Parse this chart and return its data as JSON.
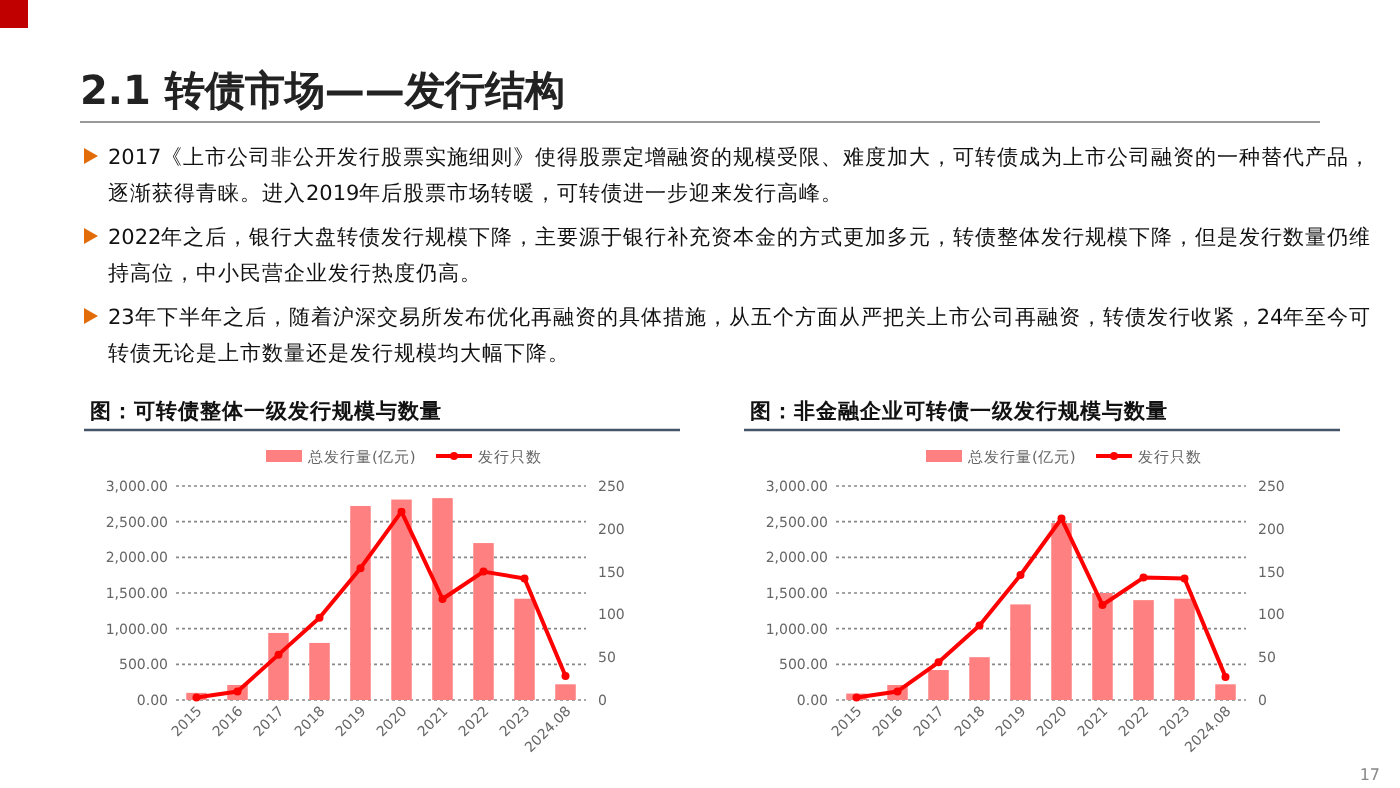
{
  "chart_data": [
    {
      "type": "other",
      "title": "2.1 转债市场——发行结构",
      "annotations": [
        "2017《上市公司非公开发行股票实施细则》使得股票定增融资的规模受限、难度加大，可转债成为上市公司融资的一种替代产品，逐渐获得青睐。进入2019年后股票市场转暖，可转债进一步迎来发行高峰。",
        "2022年之后，银行大盘转债发行规模下降，主要源于银行补充资本金的方式更加多元，转债整体发行规模下降，但是发行数量仍维持高位，中小民营企业发行热度仍高。",
        "23年下半年之后，随着沪深交易所发布优化再融资的具体措施，从五个方面从严把关上市公司再融资，转债发行收紧，24年至今可转债无论是上市数量还是发行规模均大幅下降。",
        "17"
      ]
    },
    {
      "type": "bar",
      "title": "图：可转债整体一级发行规模与数量",
      "categories": [
        "2015",
        "2016",
        "2017",
        "2018",
        "2019",
        "2020",
        "2021",
        "2022",
        "2023",
        "2024.08"
      ],
      "series": [
        {
          "name": "总发行量(亿元)",
          "type": "bar",
          "color": "#ff8080",
          "values": [
            100,
            210,
            940,
            800,
            2720,
            2810,
            2830,
            2200,
            1420,
            220
          ]
        },
        {
          "name": "发行只数",
          "type": "line",
          "axis": "y2",
          "color": "#ff0000",
          "marker": "circle",
          "values": [
            3,
            10,
            53,
            96,
            154,
            220,
            118,
            150,
            142,
            28
          ]
        }
      ],
      "ylim": [
        0,
        3000
      ],
      "yticks": [
        {
          "value": 0,
          "label": "0.00"
        },
        {
          "value": 500,
          "label": "500.00"
        },
        {
          "value": 1000,
          "label": "1,000.00"
        },
        {
          "value": 1500,
          "label": "1,500.00"
        },
        {
          "value": 2000,
          "label": "2,000.00"
        },
        {
          "value": 2500,
          "label": "2,500.00"
        },
        {
          "value": 3000,
          "label": "3,000.00"
        }
      ],
      "y2lim": [
        0,
        250
      ],
      "y2ticks": [
        0,
        50,
        100,
        150,
        200,
        250
      ],
      "grid": "y",
      "legend": "top"
    },
    {
      "type": "bar",
      "title": "图：非金融企业可转债一级发行规模与数量",
      "categories": [
        "2015",
        "2016",
        "2017",
        "2018",
        "2019",
        "2020",
        "2021",
        "2022",
        "2023",
        "2024.08"
      ],
      "series": [
        {
          "name": "总发行量(亿元)",
          "type": "bar",
          "color": "#ff8080",
          "values": [
            90,
            210,
            420,
            600,
            1340,
            2480,
            1500,
            1400,
            1420,
            220
          ]
        },
        {
          "name": "发行只数",
          "type": "line",
          "axis": "y2",
          "color": "#ff0000",
          "marker": "circle",
          "values": [
            3,
            10,
            44,
            87,
            146,
            212,
            111,
            143,
            142,
            27
          ]
        }
      ],
      "ylim": [
        0,
        3000
      ],
      "yticks": [
        {
          "value": 0,
          "label": "0.00"
        },
        {
          "value": 500,
          "label": "500.00"
        },
        {
          "value": 1000,
          "label": "1,000.00"
        },
        {
          "value": 1500,
          "label": "1,500.00"
        },
        {
          "value": 2000,
          "label": "2,000.00"
        },
        {
          "value": 2500,
          "label": "2,500.00"
        },
        {
          "value": 3000,
          "label": "3,000.00"
        }
      ],
      "y2lim": [
        0,
        250
      ],
      "y2ticks": [
        0,
        50,
        100,
        150,
        200,
        250
      ],
      "grid": "y",
      "legend": "top"
    }
  ]
}
